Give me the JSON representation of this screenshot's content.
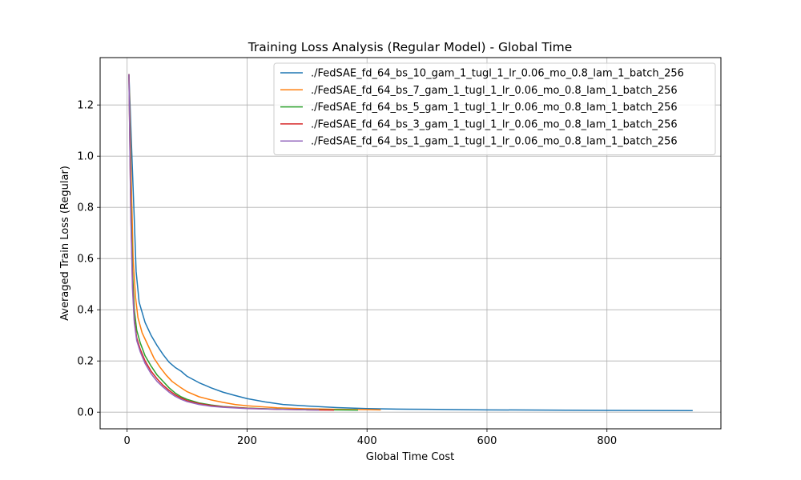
{
  "chart_data": {
    "type": "line",
    "title": "Training Loss Analysis (Regular Model) - Global Time",
    "xlabel": "Global Time Cost",
    "ylabel": "Averaged Train Loss (Regular)",
    "xlim": [
      -45,
      990
    ],
    "ylim": [
      -0.065,
      1.385
    ],
    "xticks": [
      0,
      200,
      400,
      600,
      800
    ],
    "yticks": [
      0.0,
      0.2,
      0.4,
      0.6,
      0.8,
      1.0,
      1.2
    ],
    "xtick_labels": [
      "0",
      "200",
      "400",
      "600",
      "800"
    ],
    "ytick_labels": [
      "0.0",
      "0.2",
      "0.4",
      "0.6",
      "0.8",
      "1.0",
      "1.2"
    ],
    "grid": true,
    "legend_position": "top-right",
    "series": [
      {
        "name": "./FedSAE_fd_64_bs_10_gam_1_tugl_1_lr_0.06_mo_0.8_lam_1_batch_256",
        "color": "#1f77b4",
        "points": [
          [
            3,
            1.32
          ],
          [
            8,
            1.0
          ],
          [
            12,
            0.75
          ],
          [
            15,
            0.55
          ],
          [
            20,
            0.43
          ],
          [
            30,
            0.35
          ],
          [
            40,
            0.3
          ],
          [
            50,
            0.26
          ],
          [
            60,
            0.225
          ],
          [
            70,
            0.195
          ],
          [
            80,
            0.175
          ],
          [
            90,
            0.16
          ],
          [
            100,
            0.14
          ],
          [
            120,
            0.115
          ],
          [
            140,
            0.095
          ],
          [
            160,
            0.078
          ],
          [
            180,
            0.065
          ],
          [
            200,
            0.053
          ],
          [
            230,
            0.04
          ],
          [
            260,
            0.03
          ],
          [
            300,
            0.024
          ],
          [
            350,
            0.018
          ],
          [
            400,
            0.014
          ],
          [
            450,
            0.012
          ],
          [
            500,
            0.011
          ],
          [
            600,
            0.009
          ],
          [
            700,
            0.008
          ],
          [
            800,
            0.007
          ],
          [
            943,
            0.006
          ]
        ]
      },
      {
        "name": "./FedSAE_fd_64_bs_7_gam_1_tugl_1_lr_0.06_mo_0.8_lam_1_batch_256",
        "color": "#ff7f0e",
        "points": [
          [
            3,
            1.32
          ],
          [
            7,
            0.9
          ],
          [
            10,
            0.6
          ],
          [
            14,
            0.45
          ],
          [
            18,
            0.37
          ],
          [
            25,
            0.31
          ],
          [
            35,
            0.26
          ],
          [
            45,
            0.21
          ],
          [
            55,
            0.175
          ],
          [
            65,
            0.145
          ],
          [
            75,
            0.12
          ],
          [
            90,
            0.095
          ],
          [
            100,
            0.08
          ],
          [
            120,
            0.06
          ],
          [
            140,
            0.048
          ],
          [
            160,
            0.038
          ],
          [
            180,
            0.03
          ],
          [
            200,
            0.025
          ],
          [
            250,
            0.017
          ],
          [
            300,
            0.013
          ],
          [
            350,
            0.011
          ],
          [
            400,
            0.01
          ],
          [
            423,
            0.009
          ]
        ]
      },
      {
        "name": "./FedSAE_fd_64_bs_5_gam_1_tugl_1_lr_0.06_mo_0.8_lam_1_batch_256",
        "color": "#2ca02c",
        "points": [
          [
            3,
            1.32
          ],
          [
            6,
            0.85
          ],
          [
            9,
            0.55
          ],
          [
            12,
            0.4
          ],
          [
            16,
            0.32
          ],
          [
            22,
            0.27
          ],
          [
            30,
            0.22
          ],
          [
            40,
            0.18
          ],
          [
            50,
            0.145
          ],
          [
            60,
            0.12
          ],
          [
            70,
            0.095
          ],
          [
            80,
            0.075
          ],
          [
            90,
            0.06
          ],
          [
            100,
            0.05
          ],
          [
            120,
            0.036
          ],
          [
            140,
            0.028
          ],
          [
            160,
            0.022
          ],
          [
            200,
            0.016
          ],
          [
            250,
            0.012
          ],
          [
            300,
            0.01
          ],
          [
            350,
            0.009
          ],
          [
            385,
            0.008
          ]
        ]
      },
      {
        "name": "./FedSAE_fd_64_bs_3_gam_1_tugl_1_lr_0.06_mo_0.8_lam_1_batch_256",
        "color": "#d62728",
        "points": [
          [
            3,
            1.32
          ],
          [
            6,
            0.8
          ],
          [
            9,
            0.5
          ],
          [
            12,
            0.36
          ],
          [
            16,
            0.29
          ],
          [
            22,
            0.245
          ],
          [
            30,
            0.2
          ],
          [
            40,
            0.16
          ],
          [
            50,
            0.13
          ],
          [
            60,
            0.105
          ],
          [
            70,
            0.085
          ],
          [
            80,
            0.068
          ],
          [
            90,
            0.055
          ],
          [
            100,
            0.045
          ],
          [
            120,
            0.033
          ],
          [
            140,
            0.026
          ],
          [
            160,
            0.021
          ],
          [
            200,
            0.015
          ],
          [
            250,
            0.011
          ],
          [
            300,
            0.009
          ],
          [
            345,
            0.008
          ]
        ]
      },
      {
        "name": "./FedSAE_fd_64_bs_1_gam_1_tugl_1_lr_0.06_mo_0.8_lam_1_batch_256",
        "color": "#9467bd",
        "points": [
          [
            3,
            1.32
          ],
          [
            6,
            0.78
          ],
          [
            9,
            0.48
          ],
          [
            12,
            0.35
          ],
          [
            16,
            0.28
          ],
          [
            22,
            0.235
          ],
          [
            30,
            0.19
          ],
          [
            40,
            0.15
          ],
          [
            50,
            0.12
          ],
          [
            60,
            0.098
          ],
          [
            70,
            0.078
          ],
          [
            80,
            0.062
          ],
          [
            90,
            0.05
          ],
          [
            100,
            0.041
          ],
          [
            120,
            0.03
          ],
          [
            140,
            0.023
          ],
          [
            160,
            0.019
          ],
          [
            200,
            0.014
          ],
          [
            250,
            0.011
          ],
          [
            300,
            0.009
          ],
          [
            320,
            0.008
          ]
        ]
      }
    ]
  }
}
